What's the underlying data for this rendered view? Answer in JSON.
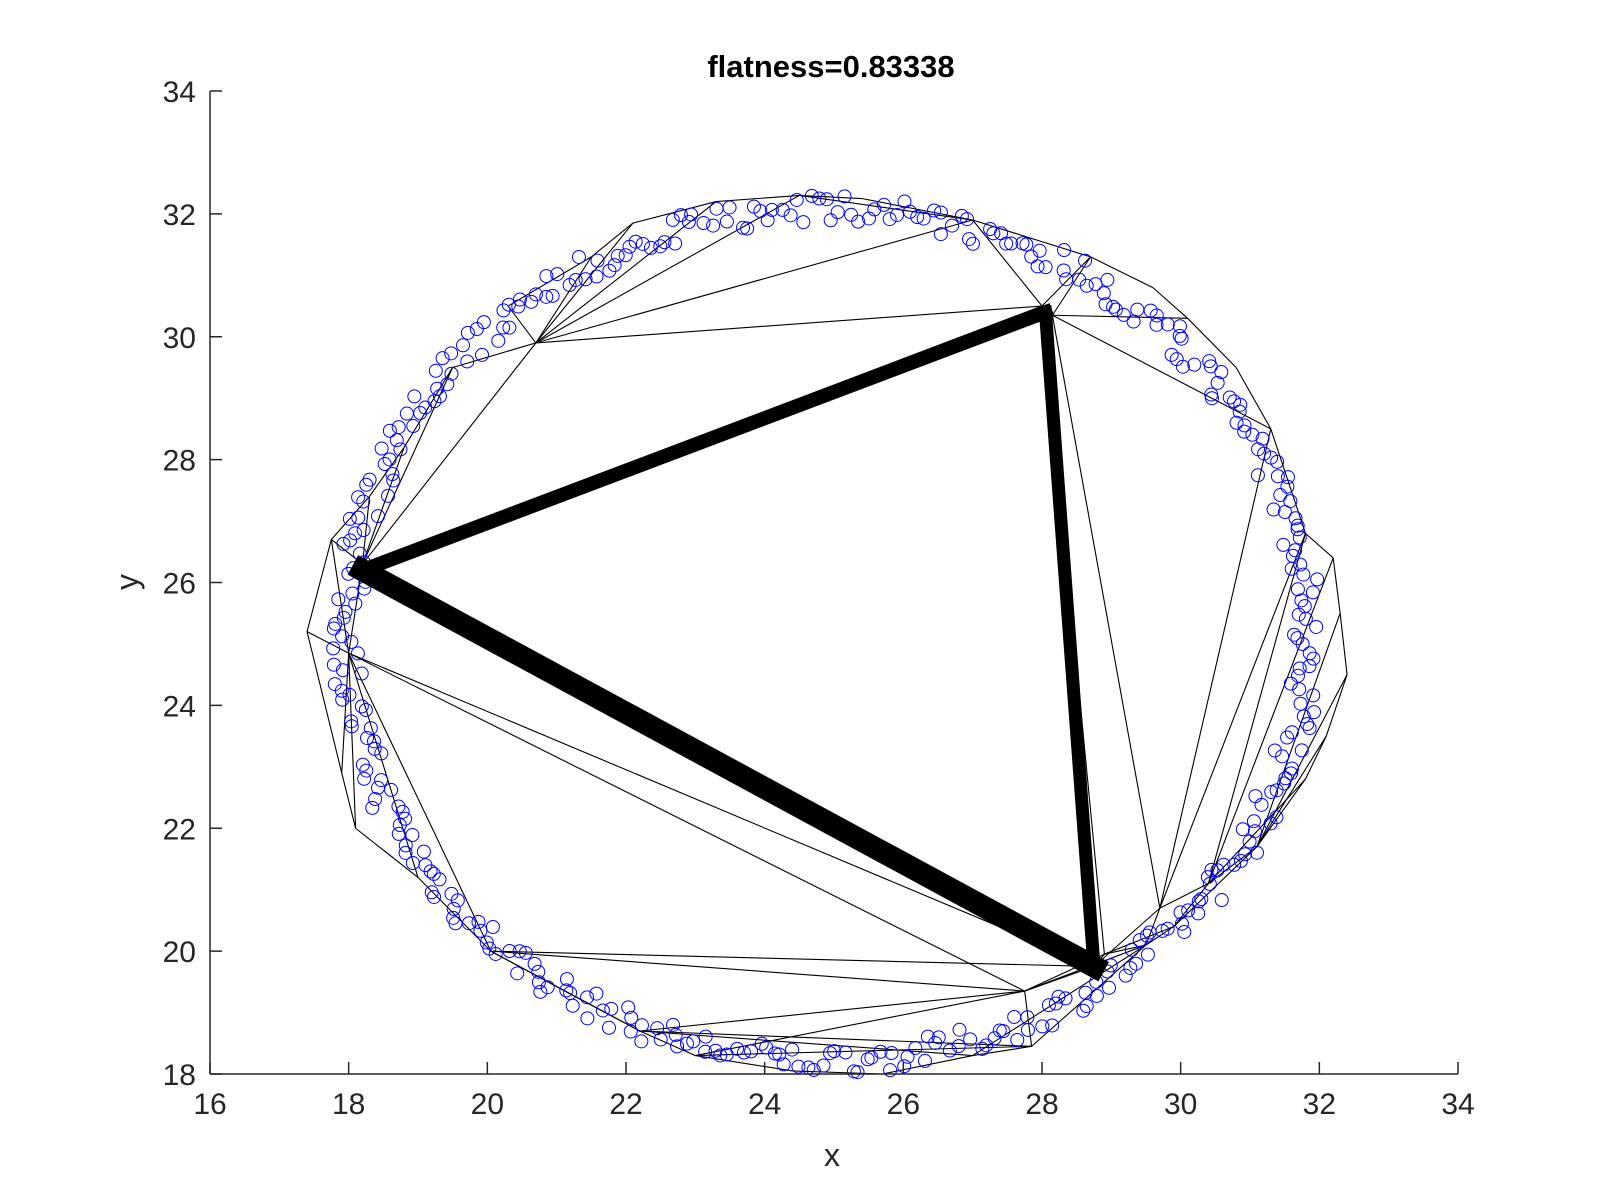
{
  "chart_data": {
    "type": "scatter",
    "title": "flatness=0.83338",
    "xlabel": "x",
    "ylabel": "y",
    "xlim": [
      16,
      34
    ],
    "ylim": [
      18,
      34
    ],
    "xticks": [
      "16",
      "18",
      "20",
      "22",
      "24",
      "26",
      "28",
      "30",
      "32",
      "34"
    ],
    "yticks": [
      "18",
      "20",
      "22",
      "24",
      "26",
      "28",
      "30",
      "32",
      "34"
    ],
    "grid": false,
    "colors": {
      "points": "#0000ff",
      "mesh": "#000000",
      "axes": "#262626"
    },
    "circle": {
      "center": [
        24.9,
        25.15
      ],
      "radius": 7.15,
      "point_count": 420
    },
    "mesh_vertices": [
      [
        17.75,
        26.7
      ],
      [
        18.2,
        26.3
      ],
      [
        17.4,
        25.2
      ],
      [
        18.0,
        24.85
      ],
      [
        17.9,
        22.9
      ],
      [
        18.1,
        22.0
      ],
      [
        19.0,
        21.2
      ],
      [
        20.05,
        20.0
      ],
      [
        21.2,
        19.3
      ],
      [
        22.2,
        18.7
      ],
      [
        23.0,
        18.3
      ],
      [
        24.4,
        18.05
      ],
      [
        25.7,
        18.0
      ],
      [
        27.0,
        18.3
      ],
      [
        27.85,
        18.45
      ],
      [
        27.75,
        19.35
      ],
      [
        28.75,
        19.75
      ],
      [
        28.9,
        19.95
      ],
      [
        29.5,
        20.1
      ],
      [
        29.9,
        20.4
      ],
      [
        29.7,
        20.7
      ],
      [
        30.4,
        21.1
      ],
      [
        31.1,
        21.7
      ],
      [
        31.8,
        22.8
      ],
      [
        32.1,
        23.5
      ],
      [
        32.4,
        24.5
      ],
      [
        32.3,
        25.5
      ],
      [
        32.2,
        26.4
      ],
      [
        31.8,
        26.8
      ],
      [
        31.3,
        28.5
      ],
      [
        30.8,
        29.5
      ],
      [
        30.1,
        30.3
      ],
      [
        29.6,
        30.8
      ],
      [
        28.7,
        31.3
      ],
      [
        27.0,
        31.9
      ],
      [
        25.4,
        32.25
      ],
      [
        24.5,
        32.3
      ],
      [
        23.3,
        32.2
      ],
      [
        22.1,
        31.85
      ],
      [
        21.5,
        31.3
      ],
      [
        20.7,
        29.9
      ],
      [
        20.3,
        30.5
      ],
      [
        19.5,
        29.5
      ],
      [
        18.8,
        28.2
      ],
      [
        18.3,
        27.4
      ],
      [
        28.0,
        30.5
      ],
      [
        28.15,
        30.35
      ]
    ],
    "mesh_edges": [
      [
        0,
        2
      ],
      [
        2,
        3
      ],
      [
        3,
        1
      ],
      [
        0,
        1
      ],
      [
        0,
        3
      ],
      [
        1,
        44
      ],
      [
        44,
        0
      ],
      [
        1,
        43
      ],
      [
        1,
        42
      ],
      [
        1,
        40
      ],
      [
        42,
        40
      ],
      [
        40,
        41
      ],
      [
        41,
        39
      ],
      [
        40,
        39
      ],
      [
        40,
        38
      ],
      [
        40,
        37
      ],
      [
        39,
        38
      ],
      [
        38,
        37
      ],
      [
        40,
        36
      ],
      [
        37,
        36
      ],
      [
        40,
        34
      ],
      [
        36,
        34
      ],
      [
        36,
        35
      ],
      [
        34,
        35
      ],
      [
        34,
        33
      ],
      [
        40,
        45
      ],
      [
        34,
        45
      ],
      [
        45,
        33
      ],
      [
        46,
        33
      ],
      [
        46,
        31
      ],
      [
        33,
        32
      ],
      [
        32,
        31
      ],
      [
        31,
        30
      ],
      [
        46,
        29
      ],
      [
        30,
        29
      ],
      [
        29,
        28
      ],
      [
        28,
        27
      ],
      [
        27,
        26
      ],
      [
        26,
        25
      ],
      [
        25,
        24
      ],
      [
        24,
        23
      ],
      [
        23,
        22
      ],
      [
        22,
        21
      ],
      [
        21,
        20
      ],
      [
        21,
        19
      ],
      [
        19,
        18
      ],
      [
        18,
        17
      ],
      [
        29,
        20
      ],
      [
        46,
        20
      ],
      [
        28,
        20
      ],
      [
        28,
        21
      ],
      [
        27,
        21
      ],
      [
        26,
        22
      ],
      [
        25,
        22
      ],
      [
        24,
        22
      ],
      [
        23,
        21
      ],
      [
        22,
        19
      ],
      [
        20,
        18
      ],
      [
        16,
        15
      ],
      [
        17,
        15
      ],
      [
        15,
        14
      ],
      [
        14,
        13
      ],
      [
        13,
        12
      ],
      [
        12,
        11
      ],
      [
        11,
        10
      ],
      [
        10,
        9
      ],
      [
        9,
        15
      ],
      [
        10,
        15
      ],
      [
        9,
        14
      ],
      [
        9,
        13
      ],
      [
        10,
        14
      ],
      [
        15,
        7
      ],
      [
        7,
        9
      ],
      [
        7,
        8
      ],
      [
        8,
        9
      ],
      [
        3,
        7
      ],
      [
        3,
        6
      ],
      [
        6,
        7
      ],
      [
        3,
        5
      ],
      [
        5,
        6
      ],
      [
        3,
        4
      ],
      [
        4,
        5
      ],
      [
        2,
        4
      ],
      [
        3,
        16
      ],
      [
        3,
        15
      ],
      [
        7,
        16
      ],
      [
        16,
        17
      ],
      [
        17,
        19
      ],
      [
        20,
        16
      ],
      [
        15,
        18
      ],
      [
        14,
        18
      ],
      [
        13,
        18
      ],
      [
        43,
        42
      ],
      [
        44,
        43
      ],
      [
        1,
        45
      ],
      [
        45,
        16
      ],
      [
        1,
        16
      ],
      [
        45,
        17
      ]
    ],
    "bold_triangle": [
      [
        18.2,
        26.2
      ],
      [
        28.05,
        30.4
      ],
      [
        28.75,
        19.75
      ]
    ]
  }
}
